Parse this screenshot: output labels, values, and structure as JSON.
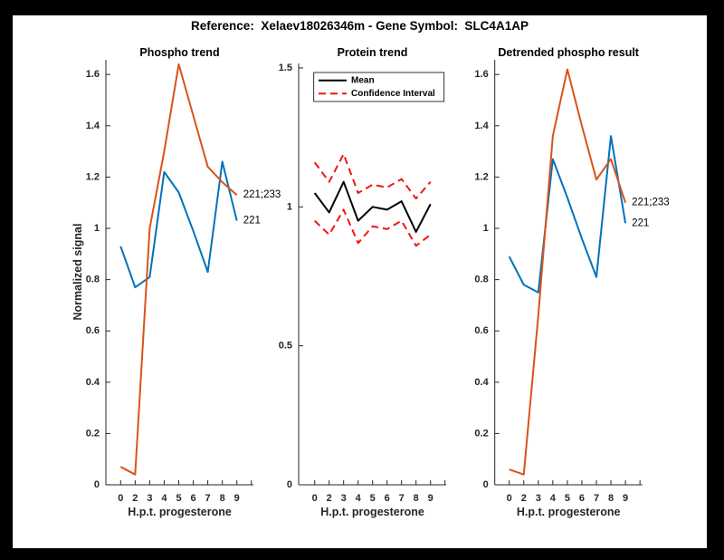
{
  "figure": {
    "title": "Reference:  Xelaev18026346m - Gene Symbol:  SLC4A1AP",
    "background_color": "#000000",
    "canvas_color": "#ffffff"
  },
  "colors": {
    "blue": "#0072BD",
    "orange": "#D95319",
    "red": "#F21414",
    "black": "#000000",
    "axis": "#262626"
  },
  "chart_data": [
    {
      "type": "line",
      "title": "Phospho trend",
      "xlabel": "H.p.t. progesterone",
      "ylabel": "Normalized signal",
      "categories": [
        "0",
        "2",
        "3",
        "4",
        "5",
        "6",
        "7",
        "8",
        "9"
      ],
      "yticks": [
        "0",
        "0.2",
        "0.4",
        "0.6",
        "0.8",
        "1",
        "1.2",
        "1.4",
        "1.6"
      ],
      "ylim": [
        0,
        1.66
      ],
      "grid": false,
      "legend_position": "none",
      "series": [
        {
          "name": "221",
          "color": "blue",
          "style": "solid",
          "values": [
            0.93,
            0.77,
            0.81,
            1.22,
            1.14,
            0.99,
            0.83,
            1.26,
            1.03
          ]
        },
        {
          "name": "221;233",
          "color": "orange",
          "style": "solid",
          "values": [
            0.07,
            0.04,
            1.0,
            1.3,
            1.64,
            1.44,
            1.24,
            1.18,
            1.13
          ]
        }
      ],
      "end_labels": [
        {
          "text": "221;233",
          "y": 1.13
        },
        {
          "text": "221",
          "y": 1.03
        }
      ]
    },
    {
      "type": "line",
      "title": "Protein trend",
      "xlabel": "H.p.t. progesterone",
      "ylabel": "",
      "categories": [
        "0",
        "2",
        "3",
        "4",
        "5",
        "6",
        "7",
        "8",
        "9"
      ],
      "yticks": [
        "0",
        "0.5",
        "1",
        "1.5"
      ],
      "ylim": [
        0,
        1.52
      ],
      "grid": false,
      "legend_position": "top-left",
      "series": [
        {
          "name": "Mean",
          "color": "black",
          "style": "solid",
          "values": [
            1.05,
            0.98,
            1.09,
            0.95,
            1.0,
            0.99,
            1.02,
            0.91,
            1.01
          ]
        },
        {
          "name": "Confidence Interval upper",
          "color": "red",
          "style": "dashed",
          "values": [
            1.16,
            1.09,
            1.19,
            1.05,
            1.08,
            1.07,
            1.1,
            1.03,
            1.09
          ]
        },
        {
          "name": "Confidence Interval lower",
          "color": "red",
          "style": "dashed",
          "values": [
            0.95,
            0.9,
            0.99,
            0.87,
            0.93,
            0.92,
            0.95,
            0.86,
            0.9
          ]
        }
      ],
      "legend": {
        "entries": [
          {
            "label": "Mean",
            "color": "black",
            "style": "solid"
          },
          {
            "label": "Confidence Interval",
            "color": "red",
            "style": "dashed"
          }
        ]
      }
    },
    {
      "type": "line",
      "title": "Detrended phospho result",
      "xlabel": "H.p.t. progesterone",
      "ylabel": "",
      "categories": [
        "0",
        "2",
        "3",
        "4",
        "5",
        "6",
        "7",
        "8",
        "9"
      ],
      "yticks": [
        "0",
        "0.2",
        "0.4",
        "0.6",
        "0.8",
        "1",
        "1.2",
        "1.4",
        "1.6"
      ],
      "ylim": [
        0,
        1.66
      ],
      "grid": false,
      "legend_position": "none",
      "series": [
        {
          "name": "221",
          "color": "blue",
          "style": "solid",
          "values": [
            0.89,
            0.78,
            0.75,
            1.27,
            1.12,
            0.96,
            0.81,
            1.36,
            1.02
          ]
        },
        {
          "name": "221;233",
          "color": "orange",
          "style": "solid",
          "values": [
            0.06,
            0.04,
            0.66,
            1.36,
            1.62,
            1.4,
            1.19,
            1.27,
            1.1
          ]
        }
      ],
      "end_labels": [
        {
          "text": "221;233",
          "y": 1.1
        },
        {
          "text": "221",
          "y": 1.02
        }
      ]
    }
  ]
}
